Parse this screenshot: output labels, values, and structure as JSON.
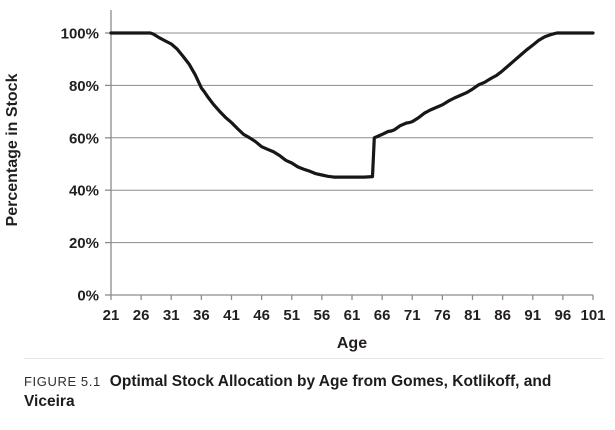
{
  "figure": {
    "caption_label": "FIGURE 5.1",
    "caption_title": "Optimal Stock Allocation by Age from Gomes, Kotlikoff, and\nViceira"
  },
  "chart_data": {
    "type": "line",
    "title": "",
    "xlabel": "Age",
    "ylabel": "Percentage in Stock",
    "xlim": [
      21,
      101
    ],
    "ylim": [
      0,
      100
    ],
    "grid": "horizontal",
    "legend": "none",
    "line_color": "#171717",
    "axis_color": "#8c8c8c",
    "x_ticks": [
      21,
      26,
      31,
      36,
      41,
      46,
      51,
      56,
      61,
      66,
      71,
      76,
      81,
      86,
      91,
      96,
      101
    ],
    "y_ticks": [
      {
        "label": "100%",
        "value": 100
      },
      {
        "label": "80%",
        "value": 80
      },
      {
        "label": "60%",
        "value": 60
      },
      {
        "label": "40%",
        "value": 40
      },
      {
        "label": "20%",
        "value": 20
      },
      {
        "label": "0%",
        "value": 0
      }
    ],
    "series": [
      {
        "name": "Optimal stock allocation",
        "points": [
          [
            21,
            100
          ],
          [
            27,
            100
          ],
          [
            27.5,
            100
          ],
          [
            28,
            99.6
          ],
          [
            29,
            98.2
          ],
          [
            30,
            97
          ],
          [
            31,
            95.8
          ],
          [
            32,
            93.8
          ],
          [
            33,
            91
          ],
          [
            34,
            88
          ],
          [
            35,
            84
          ],
          [
            36,
            79
          ],
          [
            36.5,
            77.5
          ],
          [
            37,
            75.8
          ],
          [
            38,
            72.8
          ],
          [
            39,
            70.2
          ],
          [
            40,
            67.8
          ],
          [
            41,
            65.8
          ],
          [
            42,
            63.5
          ],
          [
            43,
            61.3
          ],
          [
            44,
            60
          ],
          [
            45,
            58.5
          ],
          [
            46,
            56.6
          ],
          [
            47,
            55.6
          ],
          [
            48,
            54.6
          ],
          [
            49,
            53.2
          ],
          [
            50,
            51.4
          ],
          [
            51,
            50.4
          ],
          [
            52,
            48.9
          ],
          [
            53,
            48
          ],
          [
            54,
            47.2
          ],
          [
            55,
            46.3
          ],
          [
            56,
            45.8
          ],
          [
            57,
            45.3
          ],
          [
            58,
            45
          ],
          [
            63,
            45
          ],
          [
            64.4,
            45.2
          ],
          [
            64.7,
            60
          ],
          [
            66,
            61.3
          ],
          [
            67,
            62.4
          ],
          [
            67.5,
            62.6
          ],
          [
            68,
            63
          ],
          [
            69,
            64.6
          ],
          [
            70,
            65.6
          ],
          [
            70.5,
            65.8
          ],
          [
            71,
            66.2
          ],
          [
            72,
            67.6
          ],
          [
            73,
            69.4
          ],
          [
            74,
            70.6
          ],
          [
            75,
            71.6
          ],
          [
            76,
            72.6
          ],
          [
            77,
            74
          ],
          [
            78,
            75.2
          ],
          [
            79,
            76.2
          ],
          [
            80,
            77.2
          ],
          [
            81,
            78.6
          ],
          [
            82,
            80.2
          ],
          [
            83,
            81.2
          ],
          [
            84,
            82.6
          ],
          [
            85,
            83.8
          ],
          [
            86,
            85.6
          ],
          [
            87,
            87.6
          ],
          [
            88,
            89.6
          ],
          [
            89,
            91.6
          ],
          [
            90,
            93.6
          ],
          [
            91,
            95.4
          ],
          [
            92,
            97.2
          ],
          [
            93,
            98.6
          ],
          [
            94,
            99.4
          ],
          [
            95,
            100
          ],
          [
            101,
            100
          ]
        ]
      }
    ]
  }
}
